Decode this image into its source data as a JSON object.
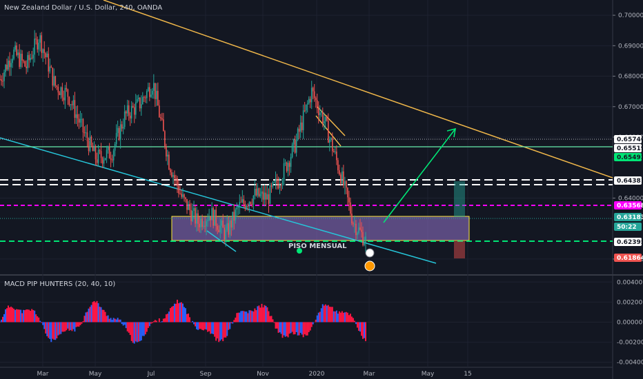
{
  "header": {
    "title": "New Zealand Dollar / U.S. Dollar, 240, OANDA"
  },
  "colors": {
    "up": "#26a69a",
    "down": "#ef5350",
    "macd_pos": "#ff1744",
    "macd_neg_blue": "#2962ff"
  },
  "chart_data": [
    {
      "type": "line",
      "title": "New Zealand Dollar / U.S. Dollar, 240, OANDA",
      "ylim": [
        0.615,
        0.705
      ],
      "y_ticks": [
        "0.70000",
        "0.69000",
        "0.68000",
        "0.67000",
        "0.66000",
        "0.64000",
        "0.62000"
      ],
      "x_ticks": [
        "Mar",
        "May",
        "Jul",
        "Sep",
        "Nov",
        "2020",
        "Mar",
        "May",
        "15"
      ],
      "series": [
        {
          "x": [
            "2019-02-01",
            "2019-02-15",
            "2019-03-01",
            "2019-03-15",
            "2019-04-01",
            "2019-04-15",
            "2019-05-01",
            "2019-05-15",
            "2019-06-01",
            "2019-06-15",
            "2019-07-01",
            "2019-07-15",
            "2019-08-01",
            "2019-08-15",
            "2019-09-01",
            "2019-09-15",
            "2019-10-01",
            "2019-10-15",
            "2019-11-01",
            "2019-11-15",
            "2019-12-01",
            "2019-12-15",
            "2020-01-01",
            "2020-01-15",
            "2020-02-01",
            "2020-02-15",
            "2020-02-28"
          ],
          "values": [
            0.679,
            0.688,
            0.683,
            0.693,
            0.677,
            0.674,
            0.662,
            0.653,
            0.655,
            0.667,
            0.671,
            0.678,
            0.652,
            0.64,
            0.632,
            0.635,
            0.628,
            0.637,
            0.641,
            0.64,
            0.648,
            0.658,
            0.675,
            0.665,
            0.648,
            0.632,
            0.626
          ]
        }
      ],
      "price_tags": [
        {
          "label": "0.65746",
          "color": "#ffffff",
          "text_color": "#131722"
        },
        {
          "label": "0.65519",
          "color": "#ffffff",
          "text_color": "#131722"
        },
        {
          "label": "0.65493",
          "color": "#00e676",
          "text_color": "#131722"
        },
        {
          "label": "0.64381",
          "color": "#ffffff",
          "text_color": "#131722"
        },
        {
          "label": "0.63568",
          "color": "#ff00ff",
          "text_color": "#ffffff"
        },
        {
          "label": "0.63183",
          "color": "#26a69a",
          "text_color": "#ffffff"
        },
        {
          "label": "50:22",
          "color": "#26a69a",
          "text_color": "#ffffff"
        },
        {
          "label": "0.62395",
          "color": "#ffffff",
          "text_color": "#131722"
        },
        {
          "label": "0.61864",
          "color": "#ef5350",
          "text_color": "#ffffff"
        }
      ],
      "annotations": [
        "PISO MENSUAL"
      ]
    },
    {
      "type": "bar",
      "title": "MACD PIP HUNTERS (20, 40, 10)",
      "ylim": [
        -0.0045,
        0.0045
      ],
      "y_ticks": [
        "0.00400",
        "0.00200",
        "0.00000",
        "-0.00200",
        "-0.00400"
      ]
    }
  ]
}
